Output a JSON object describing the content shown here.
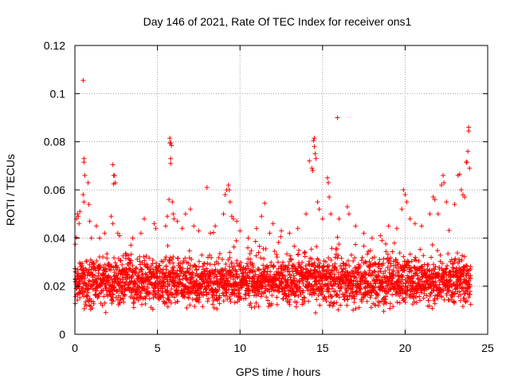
{
  "chart_data": {
    "type": "scatter",
    "title": "Day 146 of 2021, Rate Of TEC Index for receiver ons1",
    "xlabel": "GPS time / hours",
    "ylabel": "ROTI / TECUs",
    "xlim": [
      0,
      25
    ],
    "ylim": [
      0,
      0.12
    ],
    "xticks": [
      0,
      5,
      10,
      15,
      20,
      25
    ],
    "xtick_labels": [
      "0",
      "5",
      "10",
      "15",
      "20",
      "25"
    ],
    "yticks": [
      0,
      0.02,
      0.04,
      0.06,
      0.08,
      0.1,
      0.12
    ],
    "ytick_labels": [
      "0",
      "0.02",
      "0.04",
      "0.06",
      "0.08",
      "0.1",
      "0.12"
    ],
    "grid": true,
    "marker": "plus",
    "color": "#ff0000",
    "series": [
      {
        "name": "ROTI",
        "band": {
          "x_start": 0.0,
          "x_end": 23.95,
          "step": 0.05,
          "typical_low": 0.008,
          "typical_high": 0.032
        },
        "points": [
          [
            0.1,
            0.048
          ],
          [
            0.15,
            0.05
          ],
          [
            0.2,
            0.049
          ],
          [
            0.25,
            0.046
          ],
          [
            0.3,
            0.051
          ],
          [
            0.5,
            0.1055
          ],
          [
            0.55,
            0.073
          ],
          [
            0.55,
            0.0715
          ],
          [
            0.6,
            0.066
          ],
          [
            0.5,
            0.058
          ],
          [
            0.55,
            0.055
          ],
          [
            0.8,
            0.063
          ],
          [
            0.85,
            0.054
          ],
          [
            0.9,
            0.047
          ],
          [
            1.0,
            0.04
          ],
          [
            1.3,
            0.045
          ],
          [
            1.5,
            0.04
          ],
          [
            1.8,
            0.042
          ],
          [
            2.3,
            0.0705
          ],
          [
            2.35,
            0.066
          ],
          [
            2.4,
            0.066
          ],
          [
            2.45,
            0.063
          ],
          [
            2.35,
            0.0625
          ],
          [
            2.2,
            0.049
          ],
          [
            2.3,
            0.046
          ],
          [
            2.6,
            0.042
          ],
          [
            2.7,
            0.041
          ],
          [
            3.5,
            0.04
          ],
          [
            4.0,
            0.042
          ],
          [
            4.2,
            0.048
          ],
          [
            4.8,
            0.046
          ],
          [
            4.9,
            0.044
          ],
          [
            5.5,
            0.045
          ],
          [
            5.6,
            0.049
          ],
          [
            5.7,
            0.056
          ],
          [
            5.75,
            0.0815
          ],
          [
            5.75,
            0.0795
          ],
          [
            5.8,
            0.0795
          ],
          [
            5.85,
            0.0785
          ],
          [
            5.8,
            0.073
          ],
          [
            5.8,
            0.071
          ],
          [
            5.9,
            0.055
          ],
          [
            5.95,
            0.05
          ],
          [
            6.0,
            0.048
          ],
          [
            6.2,
            0.047
          ],
          [
            6.5,
            0.044
          ],
          [
            6.7,
            0.05
          ],
          [
            7.0,
            0.052
          ],
          [
            7.2,
            0.045
          ],
          [
            7.5,
            0.043
          ],
          [
            8.0,
            0.061
          ],
          [
            8.2,
            0.042
          ],
          [
            8.5,
            0.045
          ],
          [
            9.1,
            0.058
          ],
          [
            9.2,
            0.06
          ],
          [
            9.3,
            0.062
          ],
          [
            9.35,
            0.06
          ],
          [
            9.4,
            0.055
          ],
          [
            9.0,
            0.05
          ],
          [
            9.5,
            0.049
          ],
          [
            9.6,
            0.048
          ],
          [
            9.8,
            0.047
          ],
          [
            10.0,
            0.043
          ],
          [
            10.5,
            0.04
          ],
          [
            11.0,
            0.044
          ],
          [
            11.3,
            0.049
          ],
          [
            11.5,
            0.0545
          ],
          [
            11.8,
            0.042
          ],
          [
            12.0,
            0.046
          ],
          [
            12.5,
            0.043
          ],
          [
            13.0,
            0.042
          ],
          [
            13.5,
            0.044
          ],
          [
            14.0,
            0.05
          ],
          [
            14.2,
            0.072
          ],
          [
            14.35,
            0.069
          ],
          [
            14.4,
            0.068
          ],
          [
            14.5,
            0.0815
          ],
          [
            14.45,
            0.0805
          ],
          [
            14.5,
            0.078
          ],
          [
            14.55,
            0.075
          ],
          [
            14.6,
            0.073
          ],
          [
            14.7,
            0.055
          ],
          [
            14.8,
            0.052
          ],
          [
            15.0,
            0.048
          ],
          [
            15.3,
            0.065
          ],
          [
            15.35,
            0.063
          ],
          [
            15.4,
            0.057
          ],
          [
            15.5,
            0.05
          ],
          [
            15.9,
            0.09
          ],
          [
            16.0,
            0.048
          ],
          [
            16.5,
            0.053
          ],
          [
            16.6,
            0.05
          ],
          [
            17.0,
            0.045
          ],
          [
            17.5,
            0.042
          ],
          [
            18.0,
            0.04
          ],
          [
            18.5,
            0.041
          ],
          [
            19.0,
            0.045
          ],
          [
            19.5,
            0.044
          ],
          [
            19.8,
            0.052
          ],
          [
            19.9,
            0.06
          ],
          [
            20.0,
            0.058
          ],
          [
            20.1,
            0.055
          ],
          [
            20.3,
            0.048
          ],
          [
            20.6,
            0.046
          ],
          [
            21.0,
            0.045
          ],
          [
            21.5,
            0.05
          ],
          [
            21.7,
            0.057
          ],
          [
            21.8,
            0.056
          ],
          [
            22.0,
            0.05
          ],
          [
            22.2,
            0.062
          ],
          [
            22.3,
            0.066
          ],
          [
            22.35,
            0.063
          ],
          [
            22.5,
            0.055
          ],
          [
            23.0,
            0.054
          ],
          [
            23.2,
            0.066
          ],
          [
            23.3,
            0.0665
          ],
          [
            23.4,
            0.06
          ],
          [
            23.5,
            0.058
          ],
          [
            23.6,
            0.057
          ],
          [
            23.7,
            0.0715
          ],
          [
            23.75,
            0.0715
          ],
          [
            23.8,
            0.076
          ],
          [
            23.85,
            0.0845
          ],
          [
            23.85,
            0.086
          ],
          [
            23.9,
            0.069
          ]
        ]
      }
    ]
  }
}
